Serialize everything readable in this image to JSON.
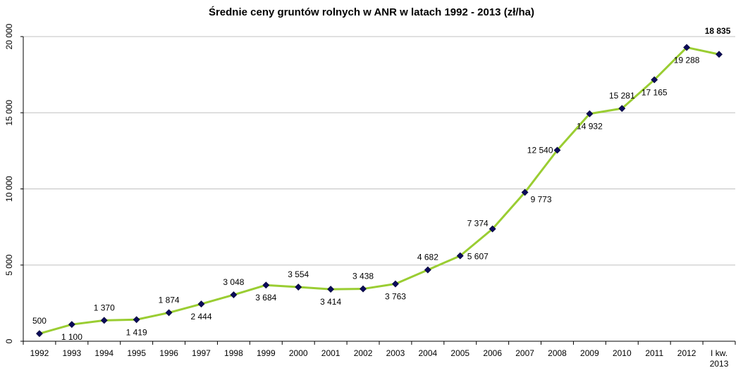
{
  "chart_data": {
    "type": "line",
    "title": "Średnie ceny gruntów rolnych w ANR w latach 1992 - 2013 (zł/ha)",
    "categories": [
      "1992",
      "1993",
      "1994",
      "1995",
      "1996",
      "1997",
      "1998",
      "1999",
      "2000",
      "2001",
      "2002",
      "2003",
      "2004",
      "2005",
      "2006",
      "2007",
      "2008",
      "2009",
      "2010",
      "2011",
      "2012",
      "I kw. 2013"
    ],
    "series": [
      {
        "values": [
          500,
          1100,
          1370,
          1419,
          1874,
          2444,
          3048,
          3684,
          3554,
          3414,
          3438,
          3763,
          4682,
          5607,
          7374,
          9773,
          12540,
          14932,
          15281,
          17165,
          19288,
          18835
        ],
        "labels": [
          "500",
          "1 100",
          "1 370",
          "1 419",
          "1 874",
          "2 444",
          "3 048",
          "3 684",
          "3 554",
          "3 414",
          "3 438",
          "3 763",
          "4 682",
          "5 607",
          "7 374",
          "9 773",
          "12 540",
          "14 932",
          "15 281",
          "17 165",
          "19 288",
          "18 835"
        ],
        "color": "#9ACD32",
        "marker_color": "#0B0B5A"
      }
    ],
    "yticks": [
      {
        "value": 0,
        "label": "0"
      },
      {
        "value": 5000,
        "label": "5 000"
      },
      {
        "value": 10000,
        "label": "10 000"
      },
      {
        "value": 15000,
        "label": "15 000"
      },
      {
        "value": 20000,
        "label": "20 000"
      }
    ],
    "ylim": [
      0,
      20000
    ],
    "grid": true,
    "gridline_color": "#C0C0C0"
  }
}
